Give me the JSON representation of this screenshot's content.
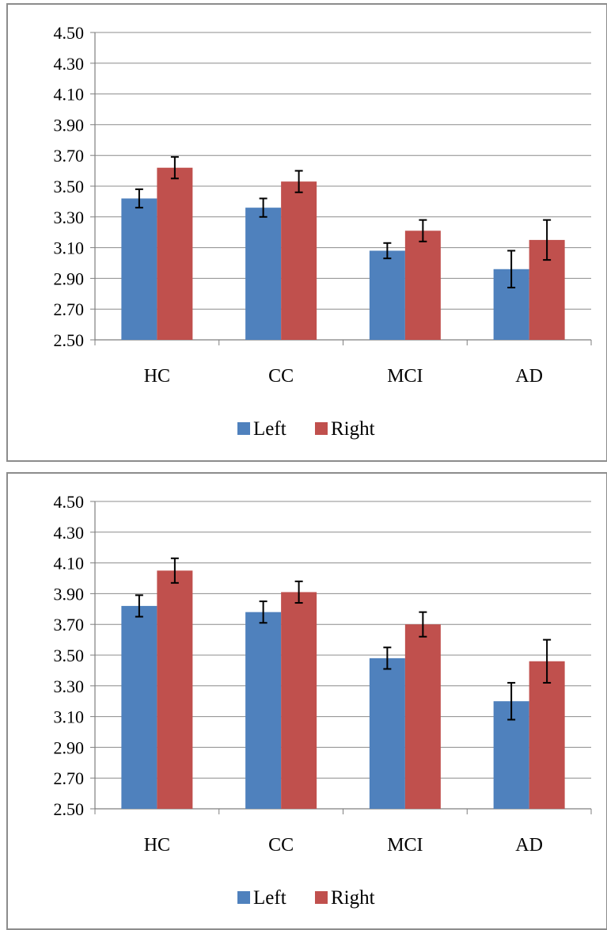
{
  "colors": {
    "left": "#4F81BD",
    "right": "#C0504D",
    "grid": "#8c8c8c",
    "axis": "#7f7f7f"
  },
  "chart_data": [
    {
      "type": "bar",
      "title": "",
      "xlabel": "",
      "ylabel": "",
      "categories": [
        "HC",
        "CC",
        "MCI",
        "AD"
      ],
      "ylim": [
        2.5,
        4.5
      ],
      "yticks": [
        "4.50",
        "4.30",
        "4.10",
        "3.90",
        "3.70",
        "3.50",
        "3.30",
        "3.10",
        "2.90",
        "2.70",
        "2.50"
      ],
      "grid": true,
      "legend": "bottom",
      "series": [
        {
          "name": "Left",
          "values": [
            3.42,
            3.36,
            3.08,
            2.96
          ],
          "error": [
            0.06,
            0.06,
            0.05,
            0.12
          ]
        },
        {
          "name": "Right",
          "values": [
            3.62,
            3.53,
            3.21,
            3.15
          ],
          "error": [
            0.07,
            0.07,
            0.07,
            0.13
          ]
        }
      ]
    },
    {
      "type": "bar",
      "title": "",
      "xlabel": "",
      "ylabel": "",
      "categories": [
        "HC",
        "CC",
        "MCI",
        "AD"
      ],
      "ylim": [
        2.5,
        4.5
      ],
      "yticks": [
        "4.50",
        "4.30",
        "4.10",
        "3.90",
        "3.70",
        "3.50",
        "3.30",
        "3.10",
        "2.90",
        "2.70",
        "2.50"
      ],
      "grid": true,
      "legend": "bottom",
      "series": [
        {
          "name": "Left",
          "values": [
            3.82,
            3.78,
            3.48,
            3.2
          ],
          "error": [
            0.07,
            0.07,
            0.07,
            0.12
          ]
        },
        {
          "name": "Right",
          "values": [
            4.05,
            3.91,
            3.7,
            3.46
          ],
          "error": [
            0.08,
            0.07,
            0.08,
            0.14
          ]
        }
      ]
    }
  ]
}
